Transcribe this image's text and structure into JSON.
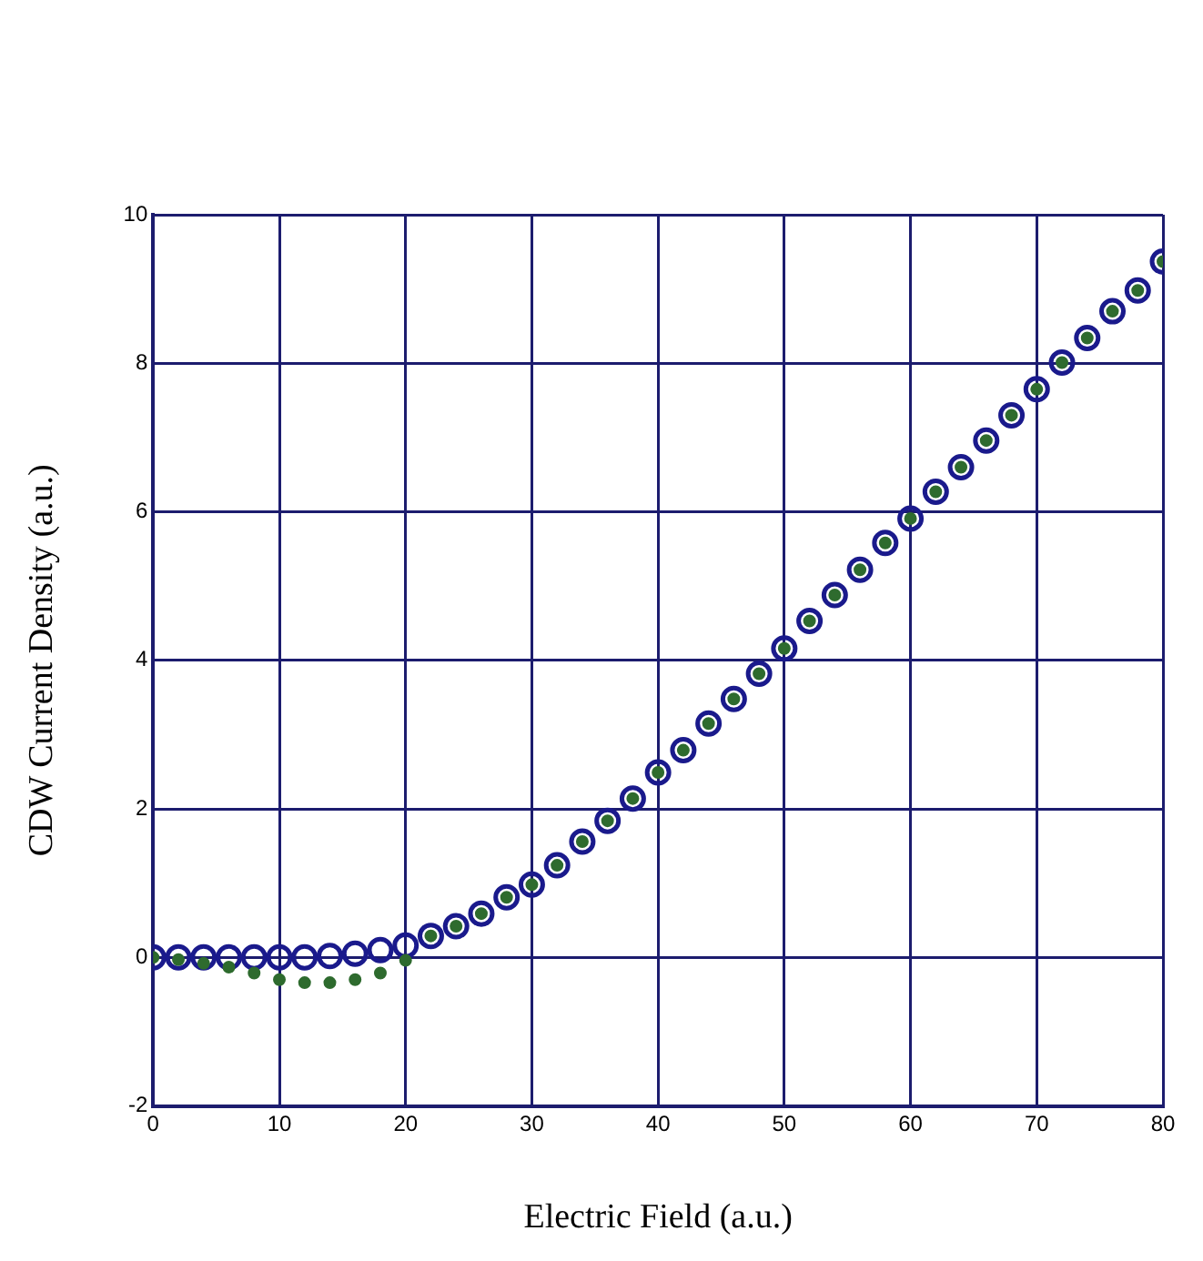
{
  "chart_data": {
    "type": "scatter",
    "xlabel": "Electric Field (a.u.)",
    "ylabel": "CDW Current Density (a.u.)",
    "x": [
      0,
      2,
      4,
      6,
      8,
      10,
      12,
      14,
      16,
      18,
      20,
      22,
      24,
      26,
      28,
      30,
      32,
      34,
      36,
      38,
      40,
      42,
      44,
      46,
      48,
      50,
      52,
      54,
      56,
      58,
      60,
      62,
      64,
      66,
      68,
      70,
      72,
      74,
      76,
      78,
      80
    ],
    "series": [
      {
        "color": "#2e6b2e",
        "values": [
          0,
          -0.03,
          -0.08,
          -0.13,
          -0.21,
          -0.3,
          -0.34,
          -0.34,
          -0.3,
          -0.21,
          -0.04,
          0.29,
          0.42,
          0.59,
          0.81,
          0.98,
          1.24,
          1.56,
          1.84,
          2.14,
          2.49,
          2.79,
          3.15,
          3.48,
          3.82,
          4.16,
          4.53,
          4.88,
          5.22,
          5.58,
          5.91,
          6.27,
          6.6,
          6.96,
          7.3,
          7.65,
          8.01,
          8.34,
          8.7,
          8.98,
          9.37
        ]
      },
      {
        "color": "#1a1a8c",
        "values": [
          0,
          0,
          0,
          0,
          0,
          0,
          0,
          0.02,
          0.05,
          0.1,
          0.16,
          0.29,
          0.42,
          0.59,
          0.81,
          0.98,
          1.24,
          1.56,
          1.84,
          2.14,
          2.49,
          2.79,
          3.15,
          3.48,
          3.82,
          4.16,
          4.53,
          4.88,
          5.22,
          5.58,
          5.91,
          6.27,
          6.6,
          6.96,
          7.3,
          7.65,
          8.01,
          8.34,
          8.7,
          8.98,
          9.37
        ]
      }
    ],
    "xlim": [
      0,
      80
    ],
    "xticks": [
      0,
      10,
      20,
      30,
      40,
      50,
      60,
      70,
      80
    ],
    "ylim": [
      -2,
      10
    ],
    "yticks": [
      -2,
      0,
      2,
      4,
      6,
      8,
      10
    ],
    "grid": true,
    "marker": "circle",
    "legend": false
  }
}
